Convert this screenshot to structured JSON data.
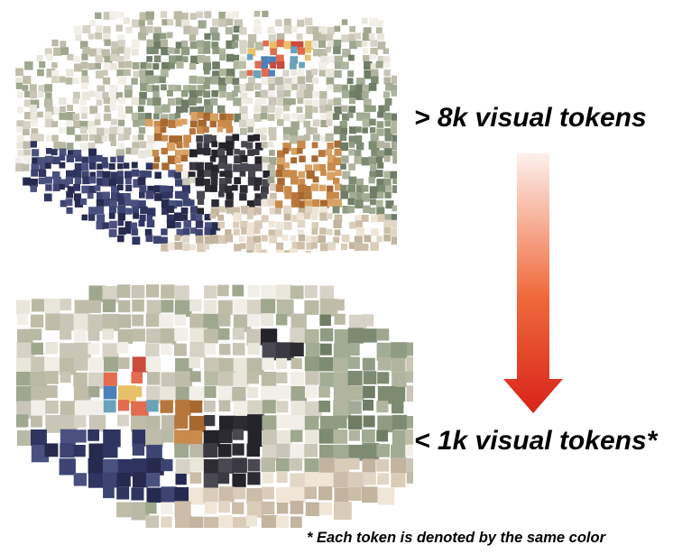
{
  "labels": {
    "top": "> 8k visual tokens",
    "bottom": "< 1k visual tokens*",
    "footnote": "* Each token is denoted by the same color"
  },
  "arrow": {
    "gradient_start": "#fdf0ec",
    "gradient_mid": "#f06a3c",
    "gradient_end": "#d8231a"
  },
  "scene_palette": {
    "wall": [
      "#e9e6dc",
      "#d7d2c6",
      "#c9c6b8",
      "#bfbda9",
      "#f2efe8",
      "#b8baa6",
      "#9fa78f"
    ],
    "curtain": [
      "#8f9c83",
      "#a2ab95",
      "#7e8b73",
      "#b1b59f",
      "#6f7c66"
    ],
    "floor": [
      "#d9ccb8",
      "#cbbda7",
      "#e2d7c6",
      "#c2b49e",
      "#efe6d8"
    ],
    "desk": [
      "#c98a4c",
      "#b7773c",
      "#d9a265",
      "#a7682f"
    ],
    "dark": [
      "#2d2c33",
      "#3b3a42",
      "#24232a",
      "#4a4850"
    ],
    "navy": [
      "#2f3560",
      "#3e4472",
      "#252a4e",
      "#4b517f"
    ],
    "accent": [
      "#e36b4f",
      "#4f7fb8",
      "#e9c06a",
      "#6aa2b9",
      "#c84b3c"
    ]
  }
}
